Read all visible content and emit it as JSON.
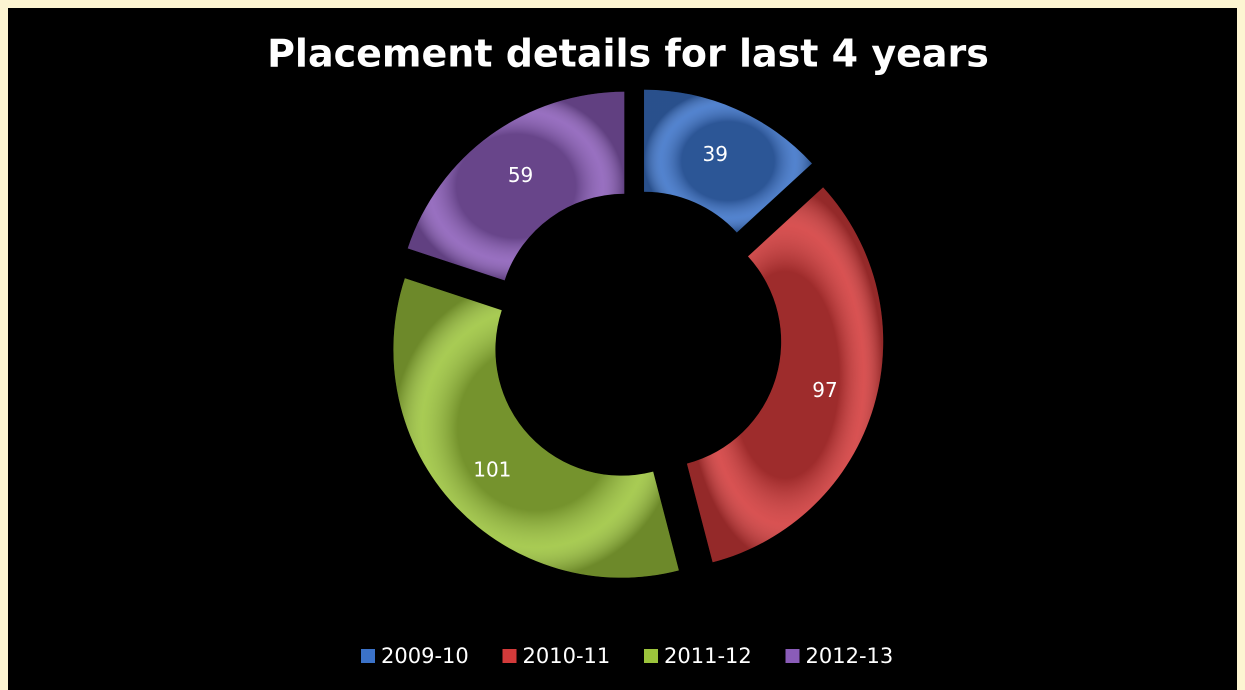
{
  "chart_data": {
    "type": "donut",
    "title": "Placement details for last 4 years",
    "categories": [
      "2009-10",
      "2010-11",
      "2011-12",
      "2012-13"
    ],
    "values": [
      39,
      97,
      101,
      59
    ],
    "colors": [
      "#3b72c8",
      "#d33a3a",
      "#9cc43c",
      "#8a5cb8"
    ]
  }
}
